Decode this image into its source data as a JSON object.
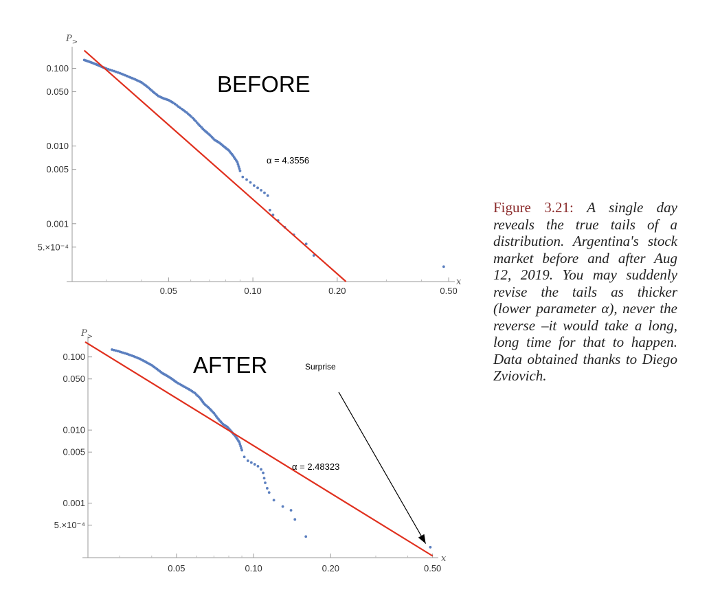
{
  "colors": {
    "points": "#5b7fbf",
    "fit_line": "#e0301e",
    "caption_number": "#8b2b2b",
    "arrow": "#000000"
  },
  "caption": {
    "number": "Figure 3.21:",
    "text": "A single day reveals the true tails of a distribution. Argentina's stock market before and after Aug 12, 2019. You may suddenly revise the tails as thicker (lower parameter α), never the reverse –it would take a long, long time for that to happen.  Data obtained thanks to Diego Zviovich."
  },
  "chart_data": [
    {
      "type": "scatter",
      "panel_label": "BEFORE",
      "xlabel": "x",
      "ylabel": "P",
      "ylabel_sub": ">",
      "x_scale": "log",
      "y_scale": "log",
      "xlim": [
        0.022,
        0.52
      ],
      "ylim": [
        0.00018,
        0.19
      ],
      "x_ticks": [
        {
          "value": 0.05,
          "label": "0.05"
        },
        {
          "value": 0.1,
          "label": "0.10"
        },
        {
          "value": 0.2,
          "label": "0.20"
        },
        {
          "value": 0.5,
          "label": "0.50"
        }
      ],
      "y_ticks": [
        {
          "value": 0.1,
          "label": "0.100"
        },
        {
          "value": 0.05,
          "label": "0.050"
        },
        {
          "value": 0.01,
          "label": "0.010"
        },
        {
          "value": 0.005,
          "label": "0.005"
        },
        {
          "value": 0.001,
          "label": "0.001"
        },
        {
          "value": 0.0005,
          "label": "5.×10⁻⁴"
        }
      ],
      "series": [
        {
          "marker": "dot",
          "points": [
            [
              0.025,
              0.128
            ],
            [
              0.026,
              0.122
            ],
            [
              0.027,
              0.116
            ],
            [
              0.028,
              0.11
            ],
            [
              0.029,
              0.104
            ],
            [
              0.03,
              0.099
            ],
            [
              0.032,
              0.092
            ],
            [
              0.034,
              0.085
            ],
            [
              0.036,
              0.078
            ],
            [
              0.038,
              0.072
            ],
            [
              0.04,
              0.066
            ],
            [
              0.042,
              0.058
            ],
            [
              0.044,
              0.05
            ],
            [
              0.046,
              0.044
            ],
            [
              0.048,
              0.041
            ],
            [
              0.05,
              0.039
            ],
            [
              0.052,
              0.036
            ],
            [
              0.055,
              0.031
            ],
            [
              0.058,
              0.027
            ],
            [
              0.061,
              0.023
            ],
            [
              0.064,
              0.019
            ],
            [
              0.067,
              0.016
            ],
            [
              0.07,
              0.014
            ],
            [
              0.073,
              0.012
            ],
            [
              0.076,
              0.011
            ],
            [
              0.079,
              0.0098
            ],
            [
              0.082,
              0.0088
            ],
            [
              0.085,
              0.0075
            ],
            [
              0.088,
              0.0062
            ],
            [
              0.09,
              0.0048
            ],
            [
              0.092,
              0.004
            ],
            [
              0.095,
              0.0037
            ],
            [
              0.098,
              0.0034
            ],
            [
              0.101,
              0.0031
            ],
            [
              0.104,
              0.0029
            ],
            [
              0.107,
              0.0027
            ],
            [
              0.11,
              0.0025
            ],
            [
              0.113,
              0.0023
            ],
            [
              0.115,
              0.0015
            ],
            [
              0.118,
              0.0013
            ],
            [
              0.123,
              0.0011
            ],
            [
              0.13,
              0.0009
            ],
            [
              0.14,
              0.00072
            ],
            [
              0.155,
              0.00055
            ],
            [
              0.165,
              0.00039
            ],
            [
              0.48,
              0.00028
            ]
          ]
        }
      ],
      "fit_line": {
        "alpha_label": "α = 4.3556",
        "points": [
          [
            0.025,
            0.17
          ],
          [
            0.215,
            0.00018
          ]
        ]
      }
    },
    {
      "type": "scatter",
      "panel_label": "AFTER",
      "xlabel": "x",
      "ylabel": "P",
      "ylabel_sub": ">",
      "x_scale": "log",
      "y_scale": "log",
      "xlim": [
        0.022,
        0.52
      ],
      "ylim": [
        0.00018,
        0.19
      ],
      "x_ticks": [
        {
          "value": 0.05,
          "label": "0.05"
        },
        {
          "value": 0.1,
          "label": "0.10"
        },
        {
          "value": 0.2,
          "label": "0.20"
        },
        {
          "value": 0.5,
          "label": "0.50"
        }
      ],
      "y_ticks": [
        {
          "value": 0.1,
          "label": "0.100"
        },
        {
          "value": 0.05,
          "label": "0.050"
        },
        {
          "value": 0.01,
          "label": "0.010"
        },
        {
          "value": 0.005,
          "label": "0.005"
        },
        {
          "value": 0.001,
          "label": "0.001"
        },
        {
          "value": 0.0005,
          "label": "5.×10⁻⁴"
        }
      ],
      "series": [
        {
          "marker": "dot",
          "points": [
            [
              0.028,
              0.126
            ],
            [
              0.03,
              0.118
            ],
            [
              0.032,
              0.11
            ],
            [
              0.034,
              0.102
            ],
            [
              0.036,
              0.094
            ],
            [
              0.038,
              0.085
            ],
            [
              0.04,
              0.077
            ],
            [
              0.042,
              0.068
            ],
            [
              0.044,
              0.06
            ],
            [
              0.046,
              0.055
            ],
            [
              0.048,
              0.05
            ],
            [
              0.05,
              0.045
            ],
            [
              0.053,
              0.04
            ],
            [
              0.056,
              0.036
            ],
            [
              0.059,
              0.032
            ],
            [
              0.062,
              0.027
            ],
            [
              0.064,
              0.023
            ],
            [
              0.067,
              0.02
            ],
            [
              0.07,
              0.017
            ],
            [
              0.073,
              0.014
            ],
            [
              0.076,
              0.012
            ],
            [
              0.079,
              0.011
            ],
            [
              0.082,
              0.0095
            ],
            [
              0.085,
              0.0082
            ],
            [
              0.088,
              0.0068
            ],
            [
              0.09,
              0.0053
            ],
            [
              0.092,
              0.0043
            ],
            [
              0.095,
              0.0038
            ],
            [
              0.098,
              0.0036
            ],
            [
              0.101,
              0.0034
            ],
            [
              0.104,
              0.0032
            ],
            [
              0.107,
              0.0029
            ],
            [
              0.109,
              0.0026
            ],
            [
              0.11,
              0.0022
            ],
            [
              0.111,
              0.0019
            ],
            [
              0.113,
              0.0016
            ],
            [
              0.115,
              0.0014
            ],
            [
              0.12,
              0.0011
            ],
            [
              0.13,
              0.0009
            ],
            [
              0.14,
              0.0008
            ],
            [
              0.145,
              0.0006
            ],
            [
              0.16,
              0.00035
            ],
            [
              0.49,
              0.00025
            ]
          ]
        }
      ],
      "fit_line": {
        "alpha_label": "α = 2.48323",
        "points": [
          [
            0.022,
            0.16
          ],
          [
            0.5,
            0.00019
          ]
        ]
      },
      "annotation": {
        "text": "Surprise",
        "from": [
          0.215,
          0.033
        ],
        "to": [
          0.47,
          0.00028
        ]
      }
    }
  ]
}
